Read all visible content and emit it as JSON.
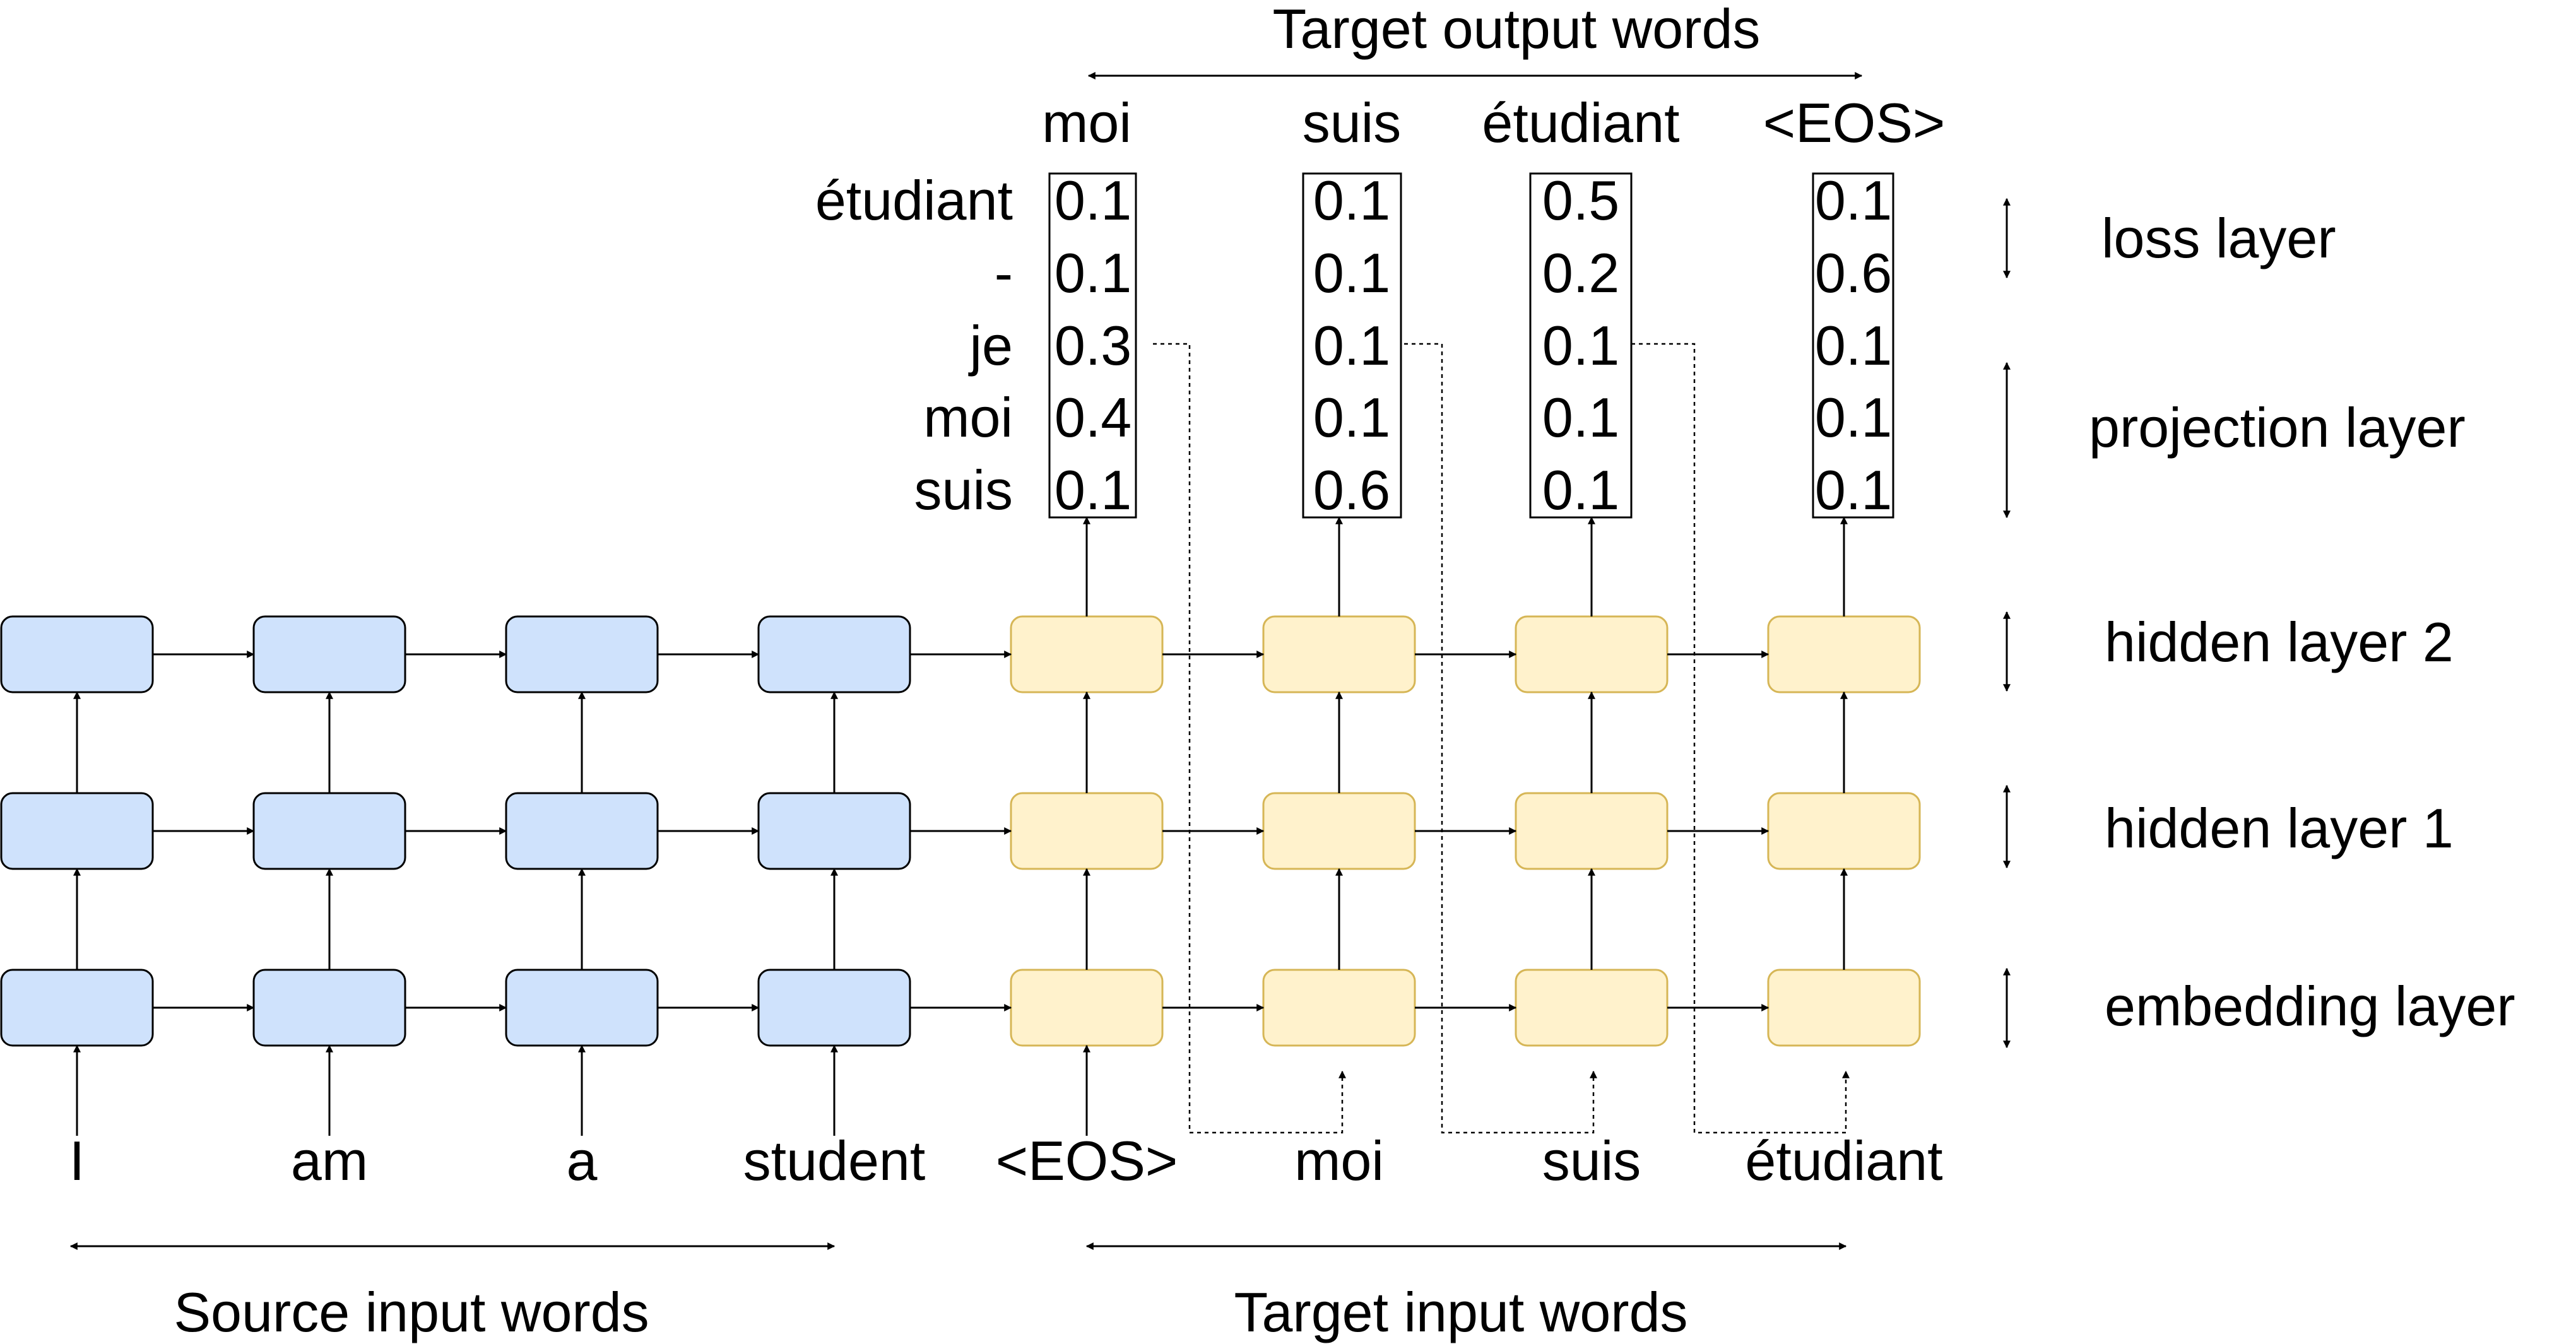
{
  "colors": {
    "encoder_fill": "#cfe2fc",
    "decoder_fill": "#fff2cc",
    "decoder_stroke": "#d6b656",
    "highlight": "#ff0000",
    "ink": "#000000"
  },
  "header": {
    "title": "Target output words"
  },
  "footer": {
    "source_label": "Source input words",
    "target_label": "Target input words"
  },
  "vocab": [
    "étudiant",
    "-",
    "je",
    "moi",
    "suis"
  ],
  "source_words": [
    "I",
    "am",
    "a",
    "student"
  ],
  "target_input_words": [
    "<EOS>",
    "moi",
    "suis",
    "étudiant"
  ],
  "outputs": [
    {
      "word": "moi",
      "probs": [
        "0.1",
        "0.1",
        "0.3",
        "0.4",
        "0.1"
      ],
      "highlight": 3
    },
    {
      "word": "suis",
      "probs": [
        "0.1",
        "0.1",
        "0.1",
        "0.1",
        "0.6"
      ],
      "highlight": 4
    },
    {
      "word": "étudiant",
      "probs": [
        "0.5",
        "0.2",
        "0.1",
        "0.1",
        "0.1"
      ],
      "highlight": 0
    },
    {
      "word": "<EOS>",
      "probs": [
        "0.1",
        "0.6",
        "0.1",
        "0.1",
        "0.1"
      ],
      "highlight": 1
    }
  ],
  "layers": {
    "loss": "loss layer",
    "projection": "projection layer",
    "hidden2": "hidden layer 2",
    "hidden1": "hidden layer 1",
    "embedding": "embedding layer"
  }
}
